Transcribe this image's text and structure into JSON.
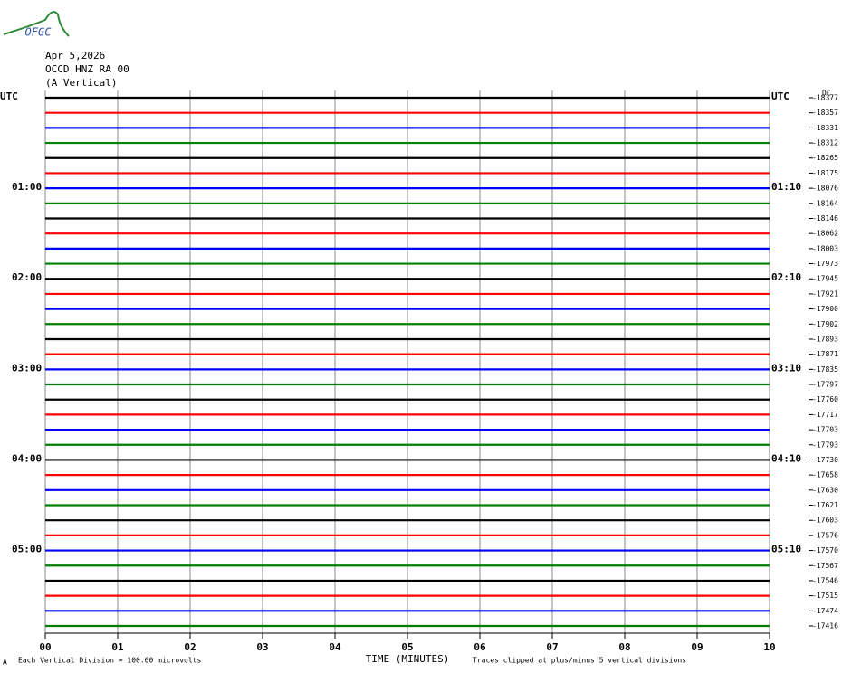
{
  "logo": "OFGC",
  "chart_data": {
    "type": "helicorder",
    "title": "Apr 5,2026",
    "subtitle": "OCCD HNZ RA 00",
    "component": "(A Vertical)",
    "xlabel": "TIME (MINUTES)",
    "scale_note": "Each Vertical Division =  100.00 microvolts",
    "clip_note": "Traces clipped at plus/minus 5 vertical divisions",
    "corner_mark": "A",
    "offset_header": "DC",
    "xlim": [
      0,
      10
    ],
    "xticks": [
      {
        "value": 0,
        "label": "00"
      },
      {
        "value": 1,
        "label": "01"
      },
      {
        "value": 2,
        "label": "02"
      },
      {
        "value": 3,
        "label": "03"
      },
      {
        "value": 4,
        "label": "04"
      },
      {
        "value": 5,
        "label": "05"
      },
      {
        "value": 6,
        "label": "06"
      },
      {
        "value": 7,
        "label": "07"
      },
      {
        "value": 8,
        "label": "08"
      },
      {
        "value": 9,
        "label": "09"
      },
      {
        "value": 10,
        "label": "10"
      }
    ],
    "grid": true,
    "colors": [
      "#000000",
      "#ff0000",
      "#0000ff",
      "#008000"
    ],
    "left_labels": [
      "UTC",
      null,
      null,
      null,
      null,
      null,
      "01:00",
      null,
      null,
      null,
      null,
      null,
      "02:00",
      null,
      null,
      null,
      null,
      null,
      "03:00",
      null,
      null,
      null,
      null,
      null,
      "04:00",
      null,
      null,
      null,
      null,
      null,
      "05:00",
      null,
      null,
      null,
      null,
      null
    ],
    "right_labels": [
      "UTC",
      null,
      null,
      null,
      null,
      null,
      "01:10",
      null,
      null,
      null,
      null,
      null,
      "02:10",
      null,
      null,
      null,
      null,
      null,
      "03:10",
      null,
      null,
      null,
      null,
      null,
      "04:10",
      null,
      null,
      null,
      null,
      null,
      "05:10",
      null,
      null,
      null,
      null,
      null
    ],
    "offsets": [
      -18377,
      -18357,
      -18331,
      -18312,
      -18265,
      -18175,
      -18076,
      -18164,
      -18146,
      -18062,
      -18003,
      -17973,
      -17945,
      -17921,
      -17900,
      -17902,
      -17893,
      -17871,
      -17835,
      -17797,
      -17760,
      -17717,
      -17703,
      -17793,
      -17730,
      -17658,
      -17630,
      -17621,
      -17603,
      -17576,
      -17570,
      -17567,
      -17546,
      -17515,
      -17474,
      -17416
    ]
  }
}
